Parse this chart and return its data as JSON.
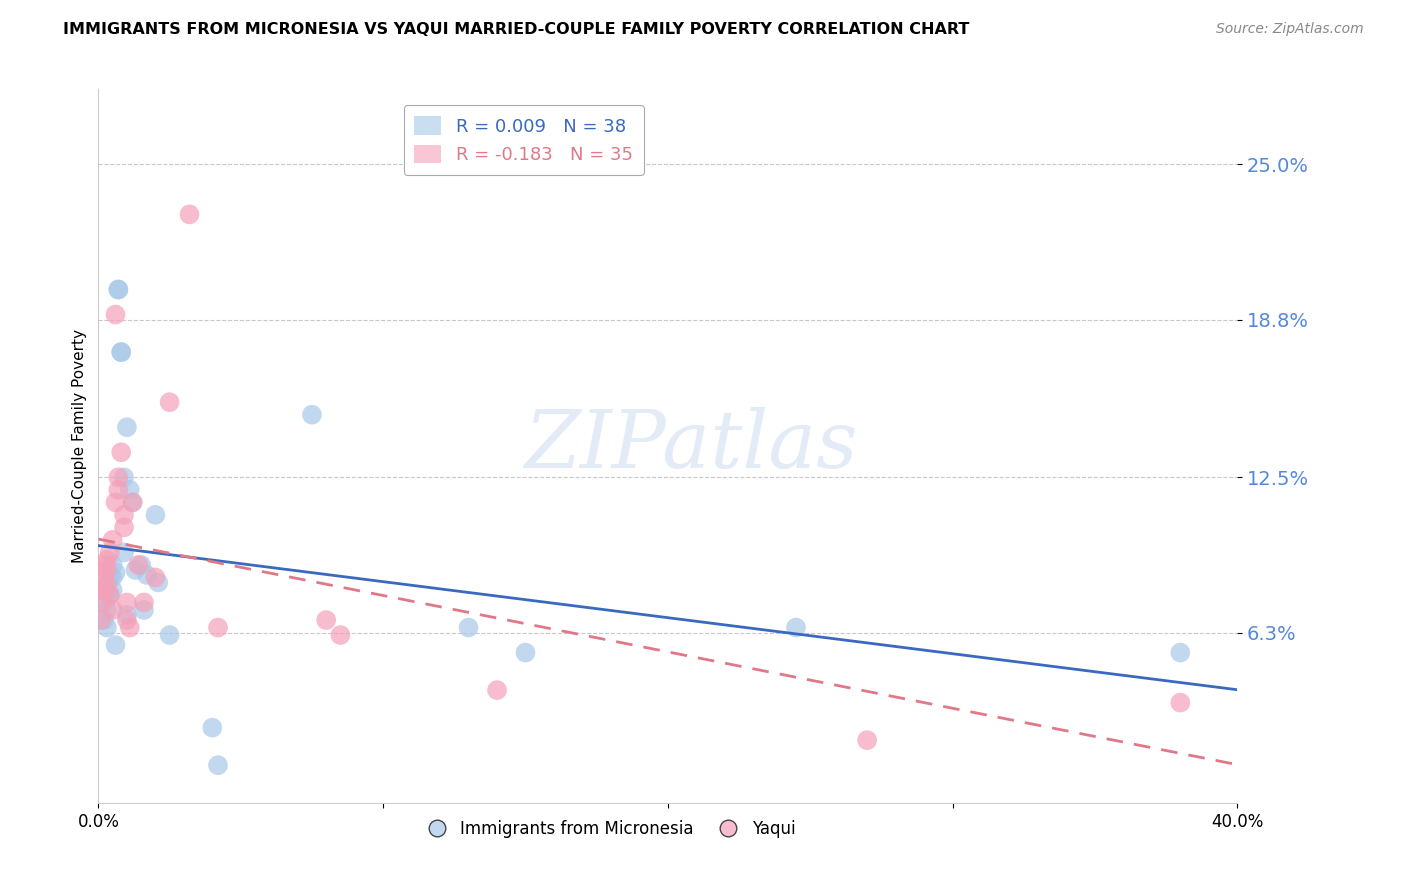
{
  "title": "IMMIGRANTS FROM MICRONESIA VS YAQUI MARRIED-COUPLE FAMILY POVERTY CORRELATION CHART",
  "source": "Source: ZipAtlas.com",
  "ylabel": "Married-Couple Family Poverty",
  "xlim": [
    0.0,
    0.4
  ],
  "ylim": [
    -0.005,
    0.28
  ],
  "yticks": [
    0.063,
    0.125,
    0.188,
    0.25
  ],
  "ytick_labels": [
    "6.3%",
    "12.5%",
    "18.8%",
    "25.0%"
  ],
  "xticks": [
    0.0,
    0.1,
    0.2,
    0.3,
    0.4
  ],
  "xtick_labels": [
    "0.0%",
    "",
    "",
    "",
    "40.0%"
  ],
  "background_color": "#ffffff",
  "grid_color": "#c8c8c8",
  "watermark_text": "ZIPatlas",
  "blue_color": "#a8c8e8",
  "pink_color": "#f4a0b8",
  "blue_line_color": "#3a6abf",
  "pink_line_color": "#e07888",
  "R_blue": 0.009,
  "N_blue": 38,
  "R_pink": -0.183,
  "N_pink": 35,
  "legend_label_blue": "Immigrants from Micronesia",
  "legend_label_pink": "Yaqui",
  "blue_scatter_x": [
    0.002,
    0.002,
    0.002,
    0.003,
    0.003,
    0.003,
    0.003,
    0.004,
    0.004,
    0.005,
    0.005,
    0.005,
    0.006,
    0.006,
    0.007,
    0.007,
    0.008,
    0.008,
    0.009,
    0.009,
    0.01,
    0.01,
    0.011,
    0.012,
    0.013,
    0.015,
    0.016,
    0.017,
    0.02,
    0.021,
    0.025,
    0.04,
    0.042,
    0.075,
    0.13,
    0.15,
    0.245,
    0.38
  ],
  "blue_scatter_y": [
    0.08,
    0.075,
    0.068,
    0.083,
    0.079,
    0.072,
    0.065,
    0.085,
    0.078,
    0.09,
    0.085,
    0.08,
    0.087,
    0.058,
    0.2,
    0.2,
    0.175,
    0.175,
    0.125,
    0.095,
    0.145,
    0.07,
    0.12,
    0.115,
    0.088,
    0.09,
    0.072,
    0.086,
    0.11,
    0.083,
    0.062,
    0.025,
    0.01,
    0.15,
    0.065,
    0.055,
    0.065,
    0.055
  ],
  "pink_scatter_x": [
    0.001,
    0.001,
    0.001,
    0.002,
    0.002,
    0.002,
    0.003,
    0.003,
    0.003,
    0.004,
    0.004,
    0.005,
    0.005,
    0.006,
    0.006,
    0.007,
    0.007,
    0.008,
    0.009,
    0.009,
    0.01,
    0.01,
    0.011,
    0.012,
    0.014,
    0.016,
    0.02,
    0.025,
    0.032,
    0.042,
    0.08,
    0.085,
    0.14,
    0.27,
    0.38
  ],
  "pink_scatter_y": [
    0.08,
    0.075,
    0.068,
    0.09,
    0.085,
    0.08,
    0.092,
    0.088,
    0.082,
    0.095,
    0.078,
    0.1,
    0.072,
    0.19,
    0.115,
    0.125,
    0.12,
    0.135,
    0.11,
    0.105,
    0.075,
    0.068,
    0.065,
    0.115,
    0.09,
    0.075,
    0.085,
    0.155,
    0.23,
    0.065,
    0.068,
    0.062,
    0.04,
    0.02,
    0.035
  ]
}
